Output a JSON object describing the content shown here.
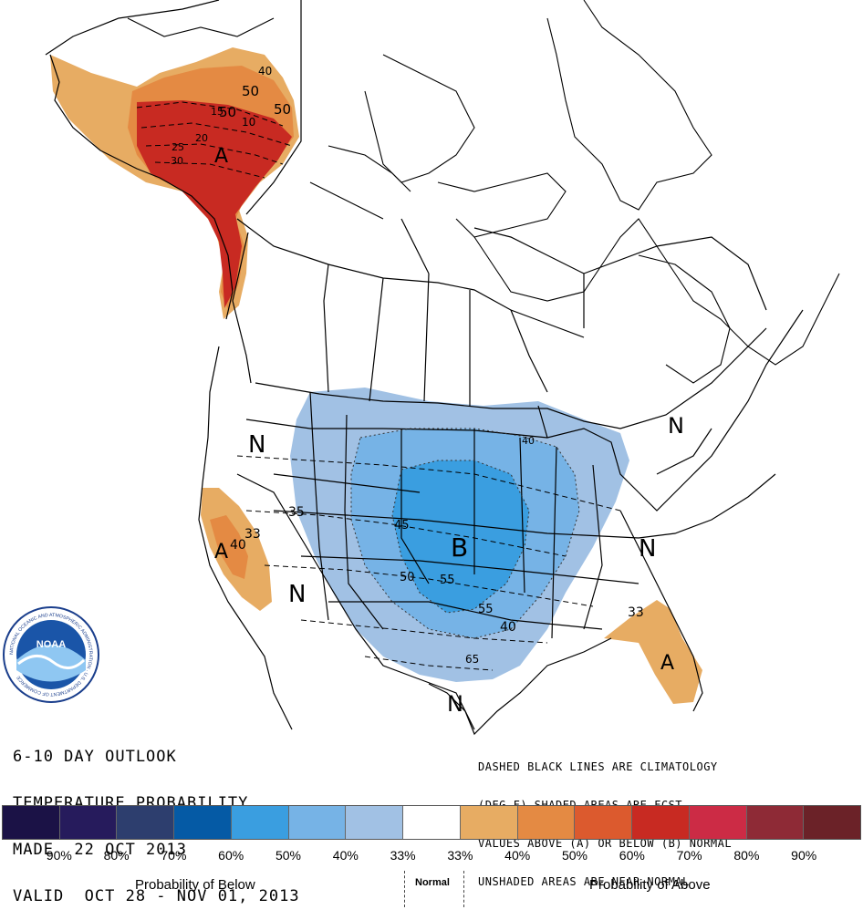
{
  "title_lines": [
    "6-10 DAY OUTLOOK",
    "TEMPERATURE PROBABILITY",
    "MADE  22 OCT 2013",
    "VALID  OCT 28 - NOV 01, 2013"
  ],
  "notes": [
    "DASHED BLACK LINES ARE CLIMATOLOGY",
    "(DEG F) SHADED AREAS ARE FCST",
    "VALUES ABOVE (A) OR BELOW (B) NORMAL",
    "UNSHADED AREAS ARE NEAR-NORMAL"
  ],
  "region_letters": {
    "alaska": "A",
    "northwest": "N",
    "california": "A",
    "southwest": "N",
    "central": "B",
    "northeast": "N",
    "east": "N",
    "florida": "A",
    "south_texas": "N"
  },
  "contour_labels": {
    "ak_40": "40",
    "ak_50_a": "50",
    "ak_50_b": "50",
    "ak_50_c": "50",
    "ak_10": "10",
    "ak_15": "15",
    "ak_20": "20",
    "ak_25": "25",
    "ak_30": "30",
    "w_35": "35",
    "ca_33": "33",
    "ca_40": "40",
    "c_45": "45",
    "c_50": "50",
    "c_55": "55",
    "s_55": "55",
    "s_40": "40",
    "s_65": "65",
    "gl_40": "40",
    "fl_33": "33"
  },
  "legend": {
    "colors": [
      "#1b1246",
      "#261b5c",
      "#2d3e6e",
      "#055aa5",
      "#3a9ee0",
      "#76b3e6",
      "#a1c1e4",
      "#ffffff",
      "#e7ac63",
      "#e48a43",
      "#dc5a2e",
      "#c82a22",
      "#cc2b45",
      "#8e2a36",
      "#6b2228"
    ],
    "percents": [
      "90%",
      "80%",
      "70%",
      "60%",
      "50%",
      "40%",
      "33%",
      "33%",
      "40%",
      "50%",
      "60%",
      "70%",
      "80%",
      "90%"
    ],
    "below_label": "Probability of Below",
    "normal_label": "Normal",
    "above_label": "Probability of Above"
  },
  "logo": {
    "text": "NOAA",
    "ring_text": "NATIONAL OCEANIC AND ATMOSPHERIC ADMINISTRATION · U.S. DEPARTMENT OF COMMERCE"
  }
}
